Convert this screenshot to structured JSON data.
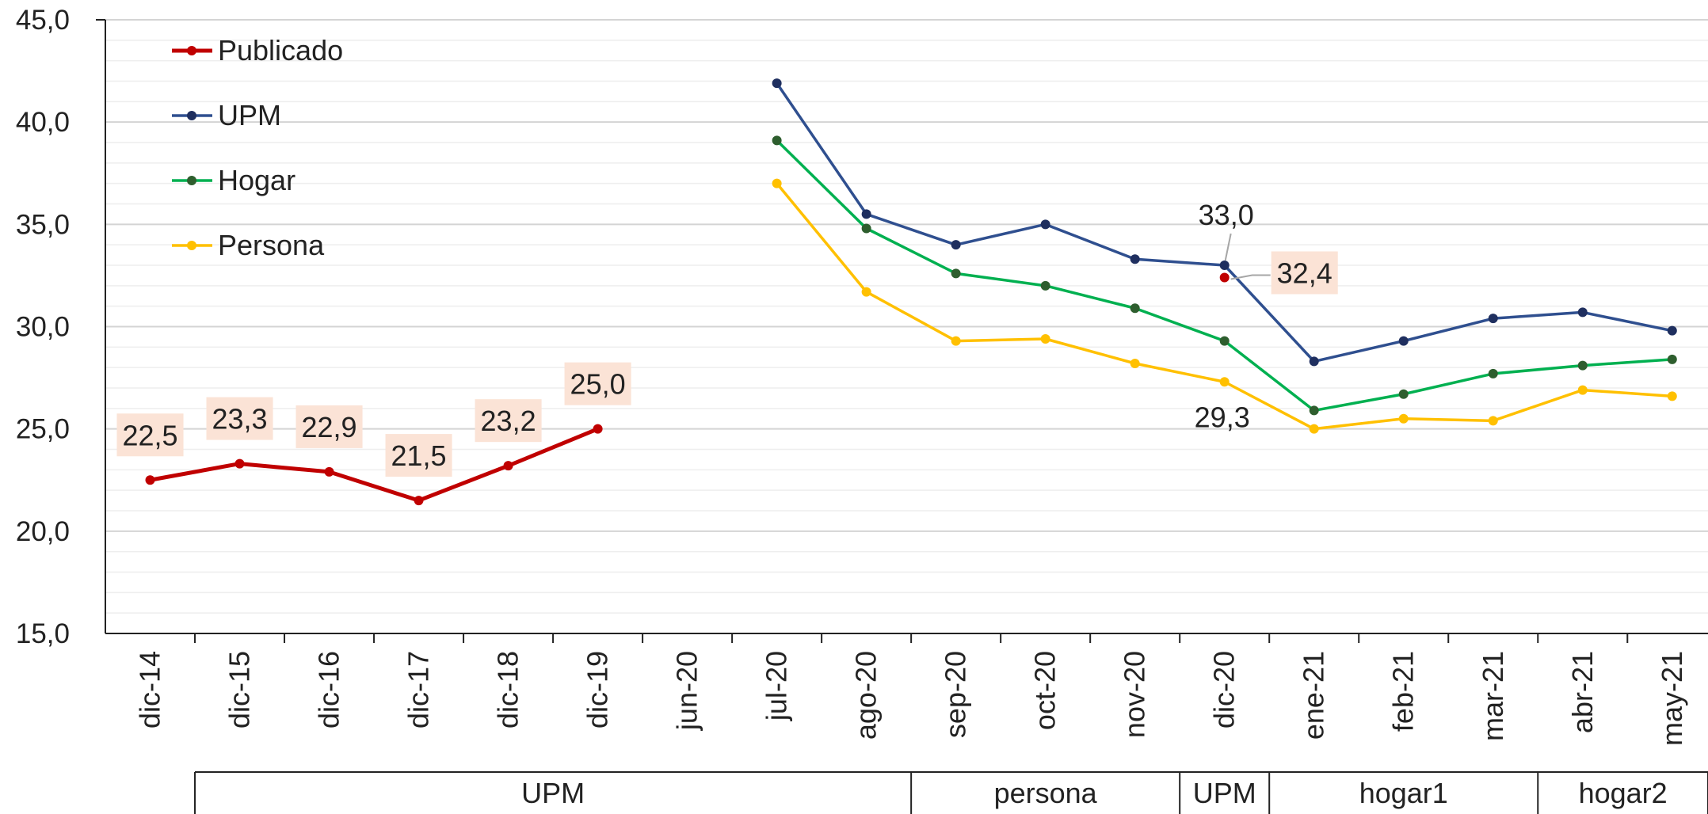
{
  "chart_data": {
    "type": "line",
    "title": "",
    "xlabel": "",
    "ylabel": "",
    "ylim": [
      15,
      45
    ],
    "yticks": [
      "15,0",
      "20,0",
      "25,0",
      "30,0",
      "35,0",
      "40,0",
      "45,0"
    ],
    "grid": true,
    "legend_position": "top-left",
    "categories": [
      "dic-14",
      "dic-15",
      "dic-16",
      "dic-17",
      "dic-18",
      "dic-19",
      "jun-20",
      "jul-20",
      "ago-20",
      "sep-20",
      "oct-20",
      "nov-20",
      "dic-20",
      "ene-21",
      "feb-21",
      "mar-21",
      "abr-21",
      "may-21"
    ],
    "groups": [
      {
        "label": "UPM",
        "start": "dic-15",
        "end": "ago-20"
      },
      {
        "label": "persona",
        "start": "sep-20",
        "end": "nov-20"
      },
      {
        "label": "UPM",
        "start": "dic-20",
        "end": "dic-20"
      },
      {
        "label": "hogar1",
        "start": "ene-21",
        "end": "mar-21"
      },
      {
        "label": "hogar2",
        "start": "abr-21",
        "end": "may-21"
      }
    ],
    "series": [
      {
        "name": "Publicado",
        "color": "#c00000",
        "values": [
          22.5,
          23.3,
          22.9,
          21.5,
          23.2,
          25.0,
          null,
          null,
          null,
          null,
          null,
          null,
          32.4,
          null,
          null,
          null,
          null,
          null
        ]
      },
      {
        "name": "UPM",
        "color": "#2f4f8f",
        "marker_color": "#1f2f5f",
        "values": [
          null,
          null,
          null,
          null,
          null,
          null,
          null,
          41.9,
          35.5,
          34.0,
          35.0,
          33.3,
          33.0,
          28.3,
          29.3,
          30.4,
          30.7,
          29.8
        ]
      },
      {
        "name": "Hogar",
        "color": "#00b050",
        "marker_color": "#2e5e2e",
        "values": [
          null,
          null,
          null,
          null,
          null,
          null,
          null,
          39.1,
          34.8,
          32.6,
          32.0,
          30.9,
          29.3,
          25.9,
          26.7,
          27.7,
          28.1,
          28.4
        ]
      },
      {
        "name": "Persona",
        "color": "#ffc000",
        "values": [
          null,
          null,
          null,
          null,
          null,
          null,
          null,
          37.0,
          31.7,
          29.3,
          29.4,
          28.2,
          27.3,
          25.0,
          25.5,
          25.4,
          26.9,
          26.6
        ]
      }
    ],
    "data_labels": [
      {
        "text": "22,5",
        "series": 0,
        "index": 0,
        "highlight": true
      },
      {
        "text": "23,3",
        "series": 0,
        "index": 1,
        "highlight": true
      },
      {
        "text": "22,9",
        "series": 0,
        "index": 2,
        "highlight": true
      },
      {
        "text": "21,5",
        "series": 0,
        "index": 3,
        "highlight": true
      },
      {
        "text": "23,2",
        "series": 0,
        "index": 4,
        "highlight": true
      },
      {
        "text": "25,0",
        "series": 0,
        "index": 5,
        "highlight": true
      },
      {
        "text": "33,0",
        "series": 1,
        "index": 12,
        "highlight": false
      },
      {
        "text": "32,4",
        "series": 0,
        "index": 12,
        "highlight": true
      },
      {
        "text": "29,3",
        "series": 2,
        "index": 12,
        "highlight": false
      }
    ]
  }
}
